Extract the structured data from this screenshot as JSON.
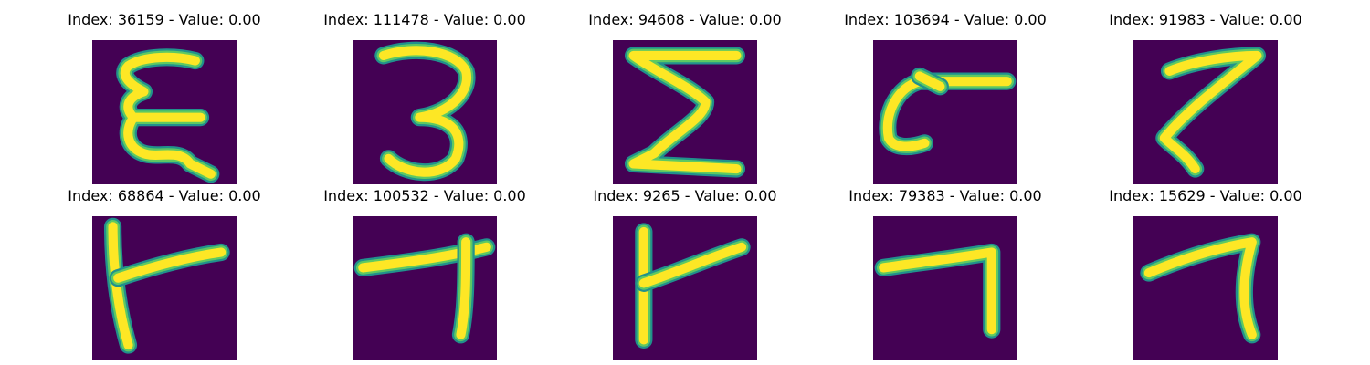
{
  "colors": {
    "background": "#440154",
    "stroke_outer": "#21918c",
    "stroke_mid": "#5ec962",
    "stroke_core": "#fde725"
  },
  "panels": [
    {
      "title": "Index: 36159 - Value: 0.00",
      "glyph": "E"
    },
    {
      "title": "Index: 111478 - Value: 0.00",
      "glyph": "3"
    },
    {
      "title": "Index: 94608 - Value: 0.00",
      "glyph": "Σ"
    },
    {
      "title": "Index: 103694 - Value: 0.00",
      "glyph": "hook"
    },
    {
      "title": "Index: 91983 - Value: 0.00",
      "glyph": "7"
    },
    {
      "title": "Index: 68864 - Value: 0.00",
      "glyph": "tee-left"
    },
    {
      "title": "Index: 100532 - Value: 0.00",
      "glyph": "tee-right"
    },
    {
      "title": "Index: 9265 - Value: 0.00",
      "glyph": "tee-left"
    },
    {
      "title": "Index: 79383 - Value: 0.00",
      "glyph": "7-flat"
    },
    {
      "title": "Index: 15629 - Value: 0.00",
      "glyph": "7-flat"
    }
  ]
}
